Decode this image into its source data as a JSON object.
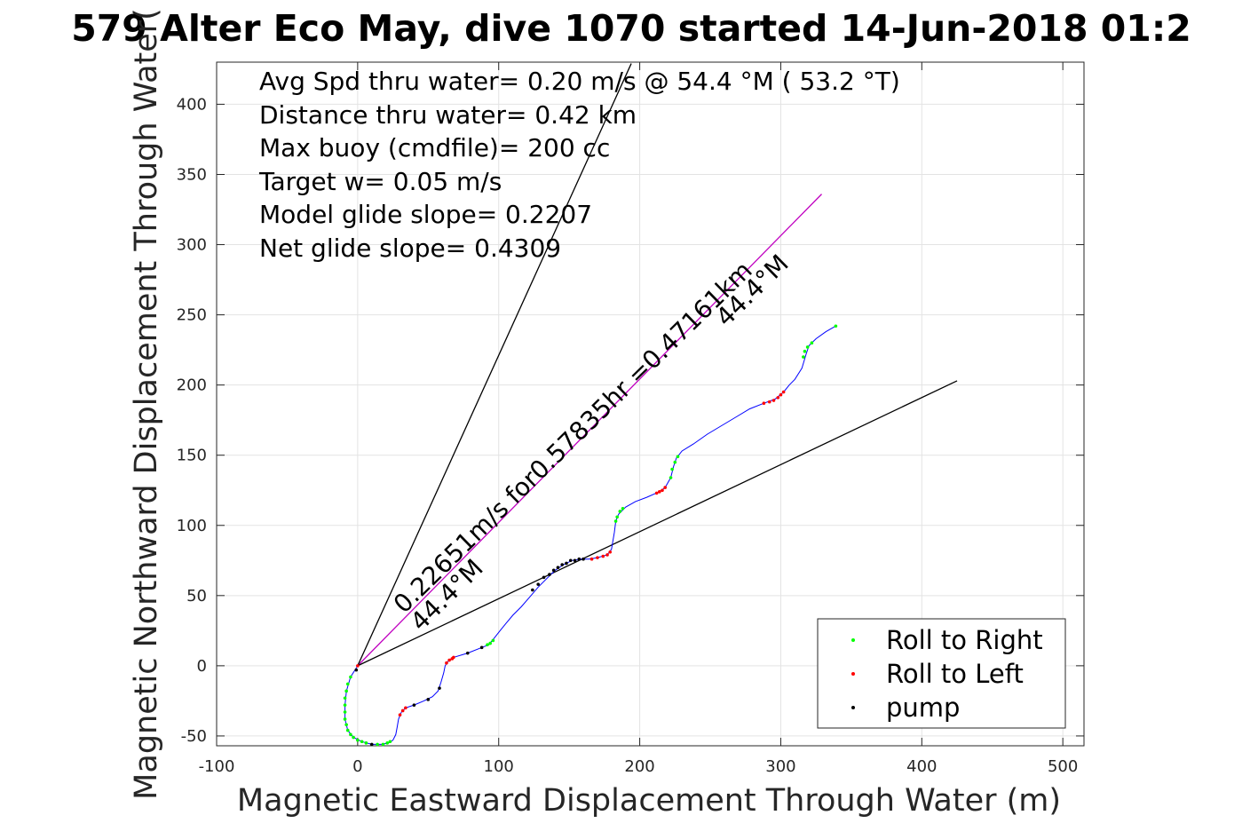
{
  "chart_data": {
    "type": "line",
    "title": "579 Alter Eco May, dive 1070 started 14-Jun-2018 01:2",
    "xlabel": "Magnetic Eastward Displacement Through Water (m)",
    "ylabel": "Magnetic Northward Displacement Through Water(",
    "xlim": [
      -100,
      515
    ],
    "ylim": [
      -57,
      430
    ],
    "xticks": [
      -100,
      0,
      100,
      200,
      300,
      400,
      500
    ],
    "yticks": [
      -50,
      0,
      50,
      100,
      150,
      200,
      250,
      300,
      350,
      400
    ],
    "grid": true,
    "annotations": [
      "Avg Spd thru water=  0.20 m/s @  54.4 °M ( 53.2 °T)",
      "Distance thru water=  0.42 km",
      "Max buoy (cmdfile)= 200 cc",
      "Target w= 0.05 m/s",
      "Model glide slope= 0.2207",
      "Net glide slope= 0.4309"
    ],
    "segment_labels": [
      {
        "text": "0.22651m/s for0.57835hr =0.47161km",
        "angle_deg": 44.4
      },
      {
        "text": "44.4°M",
        "angle_deg": 44.4
      },
      {
        "text": "44.4°M",
        "angle_deg": 44.4
      }
    ],
    "reference_lines": [
      {
        "name": "net",
        "color": "#c000c0",
        "points": [
          [
            0,
            0
          ],
          [
            329,
            336
          ]
        ]
      },
      {
        "name": "bound-1",
        "color": "#000000",
        "points": [
          [
            0,
            0
          ],
          [
            194,
            429
          ]
        ]
      },
      {
        "name": "bound-2",
        "color": "#000000",
        "points": [
          [
            0,
            0
          ],
          [
            425,
            203
          ]
        ]
      }
    ],
    "track": {
      "color": "#0000ff",
      "points": [
        [
          0,
          0
        ],
        [
          -5,
          -8
        ],
        [
          -8,
          -18
        ],
        [
          -9,
          -28
        ],
        [
          -9,
          -38
        ],
        [
          -7,
          -46
        ],
        [
          -3,
          -51
        ],
        [
          3,
          -54
        ],
        [
          10,
          -56
        ],
        [
          17,
          -56
        ],
        [
          22,
          -55
        ],
        [
          25,
          -53
        ],
        [
          27,
          -49
        ],
        [
          28,
          -44
        ],
        [
          29,
          -38
        ],
        [
          31,
          -33
        ],
        [
          34,
          -30
        ],
        [
          40,
          -28
        ],
        [
          47,
          -25
        ],
        [
          53,
          -22
        ],
        [
          57,
          -18
        ],
        [
          59,
          -12
        ],
        [
          61,
          -5
        ],
        [
          62,
          0
        ],
        [
          64,
          3
        ],
        [
          68,
          6
        ],
        [
          78,
          9
        ],
        [
          88,
          13
        ],
        [
          93,
          15
        ],
        [
          97,
          20
        ],
        [
          101,
          25
        ],
        [
          105,
          30
        ],
        [
          110,
          36
        ],
        [
          116,
          42
        ],
        [
          122,
          49
        ],
        [
          128,
          56
        ],
        [
          134,
          62
        ],
        [
          140,
          68
        ],
        [
          146,
          72
        ],
        [
          152,
          75
        ],
        [
          158,
          76
        ],
        [
          164,
          76
        ],
        [
          170,
          77
        ],
        [
          177,
          79
        ],
        [
          180,
          83
        ],
        [
          182,
          95
        ],
        [
          183,
          103
        ],
        [
          185,
          108
        ],
        [
          190,
          113
        ],
        [
          197,
          117
        ],
        [
          205,
          120
        ],
        [
          214,
          124
        ],
        [
          218,
          127
        ],
        [
          222,
          134
        ],
        [
          224,
          142
        ],
        [
          226,
          148
        ],
        [
          230,
          153
        ],
        [
          238,
          158
        ],
        [
          248,
          165
        ],
        [
          258,
          171
        ],
        [
          268,
          177
        ],
        [
          278,
          183
        ],
        [
          288,
          187
        ],
        [
          296,
          190
        ],
        [
          302,
          195
        ],
        [
          306,
          200
        ],
        [
          310,
          204
        ],
        [
          315,
          212
        ],
        [
          318,
          222
        ],
        [
          320,
          228
        ],
        [
          325,
          233
        ],
        [
          332,
          238
        ],
        [
          339,
          242
        ]
      ]
    },
    "series": [
      {
        "name": "Roll to Right",
        "color": "#00ff00",
        "points": [
          [
            -5,
            -8
          ],
          [
            -7,
            -13
          ],
          [
            -8,
            -18
          ],
          [
            -9,
            -23
          ],
          [
            -9,
            -28
          ],
          [
            -9,
            -33
          ],
          [
            -9,
            -38
          ],
          [
            -8,
            -42
          ],
          [
            -7,
            -46
          ],
          [
            -5,
            -49
          ],
          [
            -3,
            -51
          ],
          [
            0,
            -53
          ],
          [
            3,
            -54
          ],
          [
            6,
            -55
          ],
          [
            14,
            -56
          ],
          [
            18,
            -56
          ],
          [
            21,
            -55
          ],
          [
            23,
            -54
          ],
          [
            92,
            15
          ],
          [
            94,
            16
          ],
          [
            96,
            18
          ],
          [
            183,
            103
          ],
          [
            184,
            106
          ],
          [
            186,
            110
          ],
          [
            188,
            112
          ],
          [
            222,
            134
          ],
          [
            223,
            140
          ],
          [
            225,
            145
          ],
          [
            227,
            149
          ],
          [
            316,
            220
          ],
          [
            317,
            224
          ],
          [
            319,
            227
          ],
          [
            322,
            230
          ],
          [
            339,
            242
          ]
        ]
      },
      {
        "name": "Roll to Left",
        "color": "#ff0000",
        "points": [
          [
            0,
            0
          ],
          [
            30,
            -35
          ],
          [
            32,
            -32
          ],
          [
            34,
            -30
          ],
          [
            63,
            2
          ],
          [
            65,
            4
          ],
          [
            67,
            5
          ],
          [
            68,
            6
          ],
          [
            166,
            76
          ],
          [
            170,
            77
          ],
          [
            174,
            78
          ],
          [
            177,
            79
          ],
          [
            179,
            81
          ],
          [
            212,
            123
          ],
          [
            214,
            124
          ],
          [
            216,
            125
          ],
          [
            218,
            127
          ],
          [
            288,
            187
          ],
          [
            292,
            188
          ],
          [
            295,
            189
          ],
          [
            298,
            191
          ],
          [
            300,
            193
          ],
          [
            302,
            195
          ]
        ]
      },
      {
        "name": "pump",
        "color": "#000000",
        "points": [
          [
            -1,
            -3
          ],
          [
            10,
            -56
          ],
          [
            40,
            -28
          ],
          [
            50,
            -24
          ],
          [
            58,
            -16
          ],
          [
            78,
            9
          ],
          [
            88,
            13
          ],
          [
            124,
            54
          ],
          [
            128,
            58
          ],
          [
            132,
            63
          ],
          [
            136,
            65
          ],
          [
            139,
            68
          ],
          [
            142,
            70
          ],
          [
            145,
            72
          ],
          [
            148,
            73
          ],
          [
            151,
            75
          ],
          [
            154,
            75
          ],
          [
            157,
            76
          ],
          [
            160,
            76
          ]
        ]
      }
    ],
    "legend": {
      "placement": "bottom-right",
      "entries": [
        "Roll to Right",
        "Roll to Left",
        "pump"
      ]
    }
  }
}
